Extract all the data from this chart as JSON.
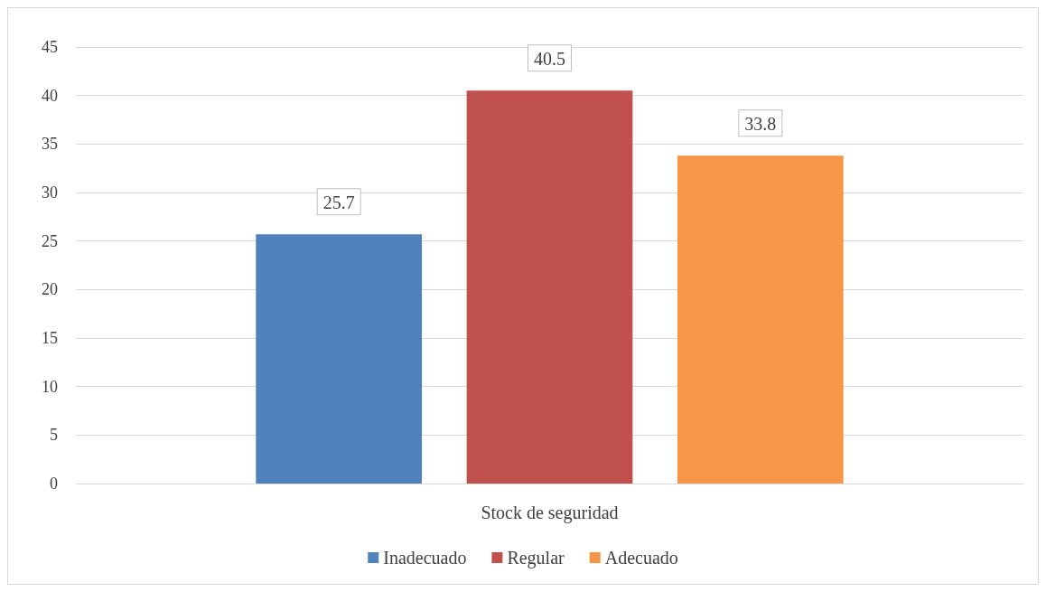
{
  "chart_data": {
    "type": "bar",
    "categories": [
      "Stock de seguridad"
    ],
    "series": [
      {
        "name": "Inadecuado",
        "color": "#4f81bd",
        "values": [
          25.7
        ]
      },
      {
        "name": "Regular",
        "color": "#c0504d",
        "values": [
          40.5
        ]
      },
      {
        "name": "Adecuado",
        "color": "#f79646",
        "values": [
          33.8
        ]
      }
    ],
    "ylim": [
      0,
      45
    ],
    "yticks": [
      0,
      5,
      10,
      15,
      20,
      25,
      30,
      35,
      40,
      45
    ],
    "grid": "y",
    "legend": "bottom",
    "data_labels": true
  }
}
